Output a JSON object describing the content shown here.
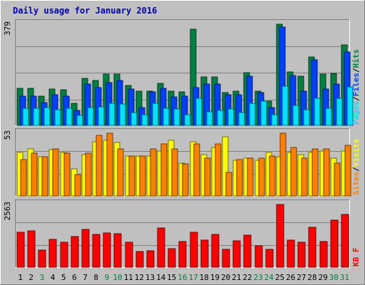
{
  "chart_data": {
    "type": "bar",
    "title": "Daily usage for January 2016",
    "categories": [
      "1",
      "2",
      "3",
      "4",
      "5",
      "6",
      "7",
      "8",
      "9",
      "10",
      "11",
      "12",
      "13",
      "14",
      "15",
      "16",
      "17",
      "18",
      "19",
      "20",
      "21",
      "22",
      "23",
      "24",
      "25",
      "26",
      "27",
      "28",
      "29",
      "30",
      "31"
    ],
    "weekend_days": [
      "3",
      "9",
      "10",
      "16",
      "17",
      "23",
      "24",
      "30",
      "31"
    ],
    "colors": {
      "background": "#c0c0c0",
      "title": "#0000aa",
      "hits": "#008040",
      "files": "#0040ff",
      "pages": "#00e0ff",
      "visits": "#ffff00",
      "sites": "#ff8000",
      "kbytes": "#ff0000",
      "weekday_label": "#000000",
      "weekend_label": "#008040",
      "gridline": "#808080"
    },
    "panels": [
      {
        "id": "hits",
        "max_label": "379",
        "ymax": 379,
        "legend": [
          {
            "text": "Pages",
            "color": "#00e0ff"
          },
          {
            "text": "/",
            "color": "#000000"
          },
          {
            "text": "Files",
            "color": "#0040ff"
          },
          {
            "text": "/",
            "color": "#000000"
          },
          {
            "text": "Hits",
            "color": "#008040"
          }
        ],
        "series": [
          {
            "name": "Hits",
            "color": "#008040",
            "values": [
              140,
              140,
              110,
              135,
              133,
              82,
              176,
              168,
              193,
              193,
              150,
              128,
              128,
              158,
              129,
              126,
              361,
              181,
              181,
              124,
              129,
              197,
              128,
              91,
              379,
              199,
              184,
              256,
              191,
              194,
              302
            ]
          },
          {
            "name": "Files",
            "color": "#0040ff",
            "values": [
              109,
              109,
              86,
              114,
              110,
              57,
              156,
              141,
              160,
              167,
              136,
              66,
              126,
              139,
              106,
              109,
              141,
              155,
              154,
              114,
              114,
              185,
              124,
              66,
              369,
              187,
              127,
              245,
              135,
              156,
              274
            ]
          },
          {
            "name": "Pages",
            "color": "#00e0ff",
            "values": [
              63,
              63,
              66,
              60,
              63,
              37,
              68,
              69,
              82,
              81,
              48,
              40,
              83,
              65,
              61,
              40,
              101,
              50,
              55,
              62,
              47,
              82,
              92,
              40,
              148,
              74,
              60,
              101,
              63,
              102,
              143
            ]
          }
        ]
      },
      {
        "id": "visits",
        "max_label": "53",
        "ymax": 53,
        "legend": [
          {
            "text": "Sites",
            "color": "#ff8000"
          },
          {
            "text": "/",
            "color": "#000000"
          },
          {
            "text": "Visits",
            "color": "#ffff00"
          }
        ],
        "series": [
          {
            "name": "Visits",
            "color": "#ffff00",
            "values": [
              37,
              40,
              33,
              39,
              37,
              23,
              35,
              46,
              47,
              45,
              34,
              34,
              34,
              38,
              47,
              28,
              46,
              35,
              41,
              50,
              30,
              32,
              30,
              37,
              33,
              37,
              35,
              37,
              38,
              32,
              38
            ]
          },
          {
            "name": "Sites",
            "color": "#ff8000",
            "values": [
              31,
              36,
              33,
              40,
              36,
              18,
              36,
              51,
              53,
              40,
              34,
              34,
              40,
              44,
              40,
              27,
              44,
              32,
              44,
              20,
              31,
              32,
              32,
              34,
              53,
              41,
              32,
              40,
              40,
              28,
              43
            ]
          }
        ]
      },
      {
        "id": "kbytes",
        "max_label": "2563",
        "ymax": 2563,
        "legend": [
          {
            "text": "KB F",
            "color": "#ff0000"
          }
        ],
        "series": [
          {
            "name": "KB F",
            "color": "#ff0000",
            "values": [
              1430,
              1473,
              703,
              1145,
              1030,
              1243,
              1532,
              1337,
              1393,
              1356,
              1027,
              645,
              684,
              1588,
              746,
              1055,
              1430,
              1117,
              1332,
              732,
              1073,
              1308,
              878,
              728,
              2563,
              1104,
              1033,
              1626,
              1046,
              1933,
              2143
            ]
          }
        ]
      }
    ]
  }
}
